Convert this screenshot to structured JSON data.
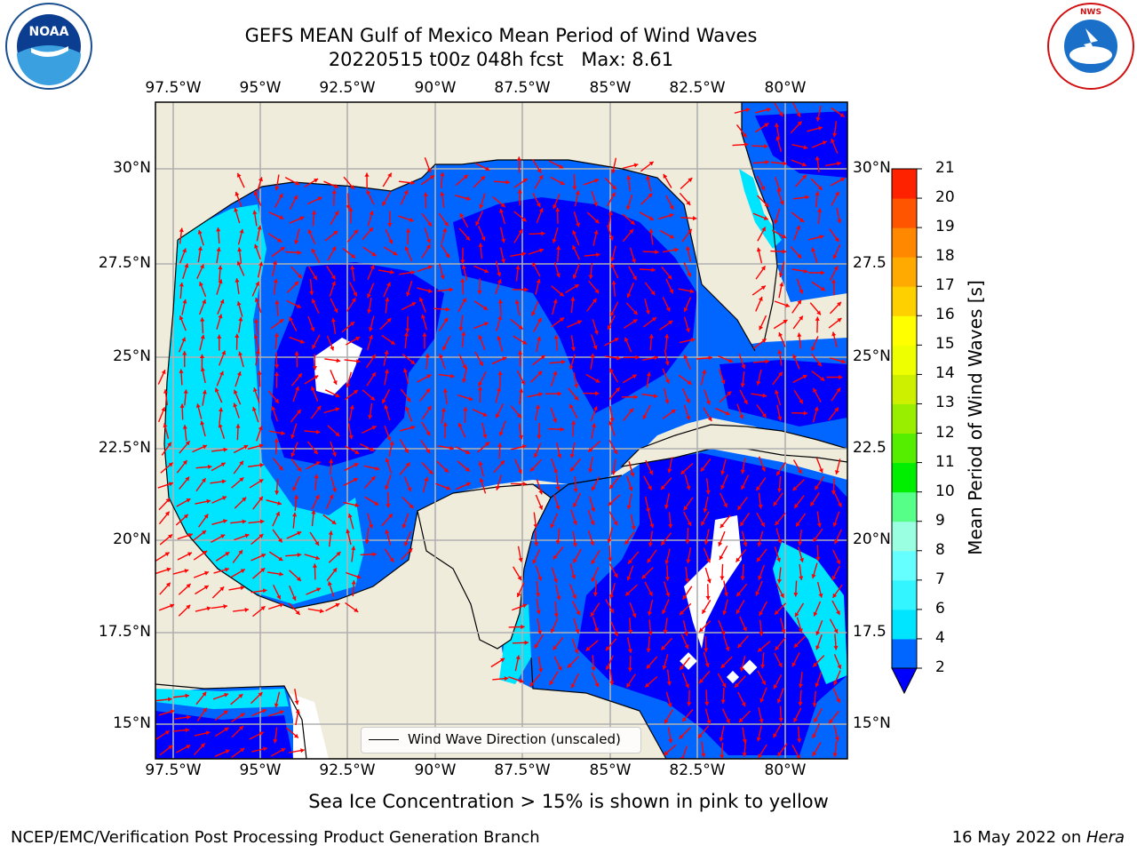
{
  "title_line1": "GEFS MEAN Gulf of Mexico Mean Period of Wind Waves",
  "title_line2": "20220515 t00z 048h fcst   Max: 8.61",
  "lon_labels": [
    "97.5°W",
    "95°W",
    "92.5°W",
    "90°W",
    "87.5°W",
    "85°W",
    "82.5°W",
    "80°W"
  ],
  "lat_labels_left": [
    "30°N",
    "27.5°N",
    "25°N",
    "22.5°N",
    "20°N",
    "17.5°N",
    "15°N"
  ],
  "lat_labels_right": [
    "30°N",
    "27.5",
    "25°N",
    "22.5",
    "20°N",
    "17.5",
    "15°N"
  ],
  "colorbar": {
    "label": "Mean Period of Wind Waves [s]",
    "ticks": [
      "2",
      "4",
      "6",
      "7",
      "8",
      "9",
      "10",
      "11",
      "12",
      "13",
      "14",
      "15",
      "16",
      "17",
      "18",
      "19",
      "20",
      "21"
    ],
    "colors": [
      "#0066ff",
      "#00e5ff",
      "#33f5ff",
      "#66ffff",
      "#99ffe0",
      "#55ff88",
      "#00ee00",
      "#55ee00",
      "#99ee00",
      "#ccf000",
      "#eeff00",
      "#ffff00",
      "#ffd000",
      "#ffaa00",
      "#ff8800",
      "#ff5500",
      "#ff2200",
      "#ff0000"
    ],
    "extend_color": "#0000ff"
  },
  "legend_label": "Wind Wave Direction (unscaled)",
  "note": "Sea Ice Concentration > 15% is shown in pink to yellow",
  "footer_left": "NCEP/EMC/Verification Post Processing Product Generation Branch",
  "footer_right_prefix": "16 May 2022 on ",
  "footer_right_host": "Hera",
  "logos": {
    "left": "NOAA",
    "right": "NATIONAL WEATHER SERVICE"
  },
  "colors": {
    "land": "#efecdc",
    "arrow": "#ff0000",
    "band_2_4": "#0066ff",
    "band_4_6": "#00e5ff",
    "below_2": "#0000ff",
    "grid": "#b0b0b0"
  }
}
